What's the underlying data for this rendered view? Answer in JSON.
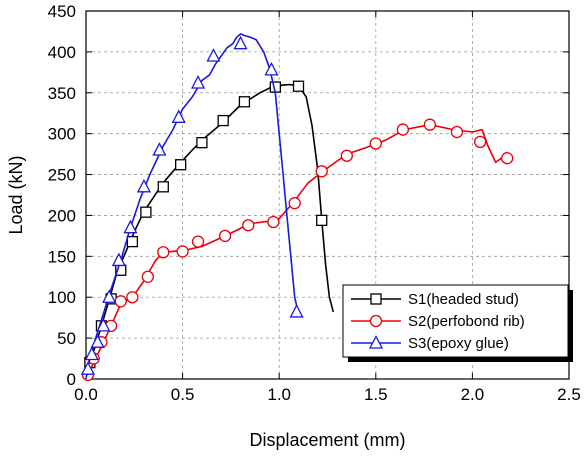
{
  "chart_data": {
    "type": "line",
    "title": "",
    "xlabel": "Displacement (mm)",
    "ylabel": "Load (kN)",
    "xlim": [
      0,
      2.5
    ],
    "ylim": [
      0,
      450
    ],
    "xticks": [
      0.0,
      0.5,
      1.0,
      1.5,
      2.0,
      2.5
    ],
    "xtick_labels": [
      "0.0",
      "0.5",
      "1.0",
      "1.5",
      "2.0",
      "2.5"
    ],
    "yticks": [
      0,
      50,
      100,
      150,
      200,
      250,
      300,
      350,
      400,
      450
    ],
    "ytick_labels": [
      "0",
      "50",
      "100",
      "150",
      "200",
      "250",
      "300",
      "350",
      "400",
      "450"
    ],
    "grid": true,
    "legend_position": "bottom-right",
    "series": [
      {
        "name": "S1(headed stud)",
        "color": "#000000",
        "marker": "square",
        "line": [
          [
            0,
            0
          ],
          [
            0.02,
            20
          ],
          [
            0.05,
            42
          ],
          [
            0.08,
            65
          ],
          [
            0.12,
            97
          ],
          [
            0.16,
            130
          ],
          [
            0.2,
            152
          ],
          [
            0.25,
            180
          ],
          [
            0.3,
            205
          ],
          [
            0.4,
            240
          ],
          [
            0.48,
            262
          ],
          [
            0.55,
            280
          ],
          [
            0.6,
            292
          ],
          [
            0.7,
            312
          ],
          [
            0.8,
            335
          ],
          [
            0.9,
            350
          ],
          [
            0.96,
            357
          ],
          [
            1.0,
            359
          ],
          [
            1.05,
            360
          ],
          [
            1.1,
            359
          ],
          [
            1.14,
            345
          ],
          [
            1.17,
            310
          ],
          [
            1.2,
            255
          ],
          [
            1.22,
            195
          ],
          [
            1.24,
            140
          ],
          [
            1.26,
            100
          ],
          [
            1.28,
            82
          ]
        ],
        "markers": [
          [
            0.02,
            20
          ],
          [
            0.08,
            65
          ],
          [
            0.13,
            98
          ],
          [
            0.18,
            133
          ],
          [
            0.24,
            168
          ],
          [
            0.31,
            204
          ],
          [
            0.4,
            235
          ],
          [
            0.49,
            262
          ],
          [
            0.6,
            289
          ],
          [
            0.71,
            316
          ],
          [
            0.82,
            339
          ],
          [
            0.98,
            357
          ],
          [
            1.1,
            358
          ],
          [
            1.22,
            194
          ]
        ]
      },
      {
        "name": "S2(perfobond rib)",
        "color": "#e8000b",
        "marker": "circle",
        "line": [
          [
            0,
            0
          ],
          [
            0.03,
            15
          ],
          [
            0.06,
            30
          ],
          [
            0.09,
            45
          ],
          [
            0.13,
            65
          ],
          [
            0.18,
            92
          ],
          [
            0.24,
            100
          ],
          [
            0.3,
            120
          ],
          [
            0.36,
            145
          ],
          [
            0.4,
            155
          ],
          [
            0.5,
            157
          ],
          [
            0.6,
            162
          ],
          [
            0.72,
            175
          ],
          [
            0.85,
            190
          ],
          [
            0.95,
            193
          ],
          [
            1.0,
            196
          ],
          [
            1.07,
            215
          ],
          [
            1.15,
            240
          ],
          [
            1.25,
            258
          ],
          [
            1.35,
            275
          ],
          [
            1.45,
            283
          ],
          [
            1.55,
            292
          ],
          [
            1.65,
            305
          ],
          [
            1.78,
            311
          ],
          [
            1.9,
            305
          ],
          [
            2.0,
            302
          ],
          [
            2.05,
            305
          ],
          [
            2.08,
            285
          ],
          [
            2.12,
            265
          ],
          [
            2.15,
            270
          ],
          [
            2.19,
            270
          ]
        ],
        "markers": [
          [
            0.01,
            5
          ],
          [
            0.04,
            25
          ],
          [
            0.08,
            45
          ],
          [
            0.13,
            65
          ],
          [
            0.18,
            95
          ],
          [
            0.24,
            100
          ],
          [
            0.32,
            125
          ],
          [
            0.4,
            155
          ],
          [
            0.5,
            156
          ],
          [
            0.58,
            168
          ],
          [
            0.72,
            175
          ],
          [
            0.84,
            188
          ],
          [
            0.97,
            192
          ],
          [
            1.08,
            215
          ],
          [
            1.22,
            254
          ],
          [
            1.35,
            273
          ],
          [
            1.5,
            288
          ],
          [
            1.64,
            305
          ],
          [
            1.78,
            311
          ],
          [
            1.92,
            302
          ],
          [
            2.04,
            290
          ],
          [
            2.18,
            270
          ]
        ]
      },
      {
        "name": "S3(epoxy glue)",
        "color": "#1a1adc",
        "marker": "triangle",
        "line": [
          [
            0,
            0
          ],
          [
            0.02,
            25
          ],
          [
            0.05,
            50
          ],
          [
            0.09,
            80
          ],
          [
            0.13,
            110
          ],
          [
            0.18,
            145
          ],
          [
            0.23,
            185
          ],
          [
            0.28,
            220
          ],
          [
            0.33,
            250
          ],
          [
            0.4,
            285
          ],
          [
            0.45,
            305
          ],
          [
            0.5,
            330
          ],
          [
            0.55,
            345
          ],
          [
            0.6,
            365
          ],
          [
            0.64,
            372
          ],
          [
            0.67,
            385
          ],
          [
            0.7,
            395
          ],
          [
            0.73,
            405
          ],
          [
            0.76,
            410
          ],
          [
            0.78,
            418
          ],
          [
            0.8,
            422
          ],
          [
            0.82,
            420
          ],
          [
            0.85,
            418
          ],
          [
            0.88,
            415
          ],
          [
            0.92,
            400
          ],
          [
            0.95,
            380
          ],
          [
            0.98,
            350
          ],
          [
            1.0,
            300
          ],
          [
            1.02,
            250
          ],
          [
            1.04,
            200
          ],
          [
            1.06,
            150
          ],
          [
            1.08,
            100
          ],
          [
            1.1,
            80
          ]
        ],
        "markers": [
          [
            0.01,
            12
          ],
          [
            0.03,
            30
          ],
          [
            0.06,
            45
          ],
          [
            0.09,
            65
          ],
          [
            0.12,
            100
          ],
          [
            0.17,
            145
          ],
          [
            0.23,
            185
          ],
          [
            0.3,
            235
          ],
          [
            0.38,
            280
          ],
          [
            0.48,
            320
          ],
          [
            0.58,
            362
          ],
          [
            0.66,
            395
          ],
          [
            0.8,
            410
          ],
          [
            0.96,
            378
          ],
          [
            1.09,
            82
          ]
        ]
      }
    ]
  }
}
